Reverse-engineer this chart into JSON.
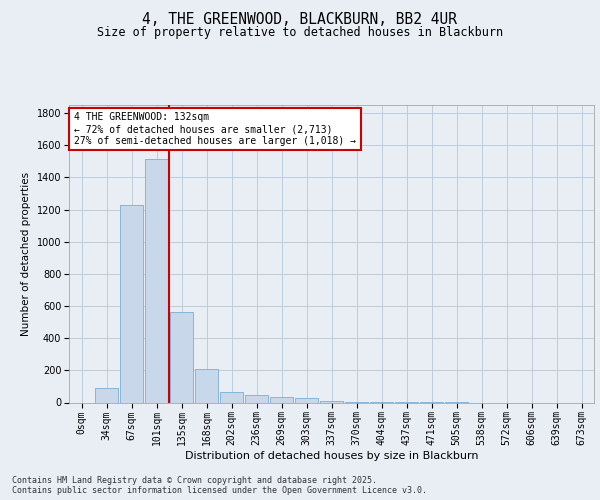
{
  "title1": "4, THE GREENWOOD, BLACKBURN, BB2 4UR",
  "title2": "Size of property relative to detached houses in Blackburn",
  "xlabel": "Distribution of detached houses by size in Blackburn",
  "ylabel": "Number of detached properties",
  "bar_labels": [
    "0sqm",
    "34sqm",
    "67sqm",
    "101sqm",
    "135sqm",
    "168sqm",
    "202sqm",
    "236sqm",
    "269sqm",
    "303sqm",
    "337sqm",
    "370sqm",
    "404sqm",
    "437sqm",
    "471sqm",
    "505sqm",
    "538sqm",
    "572sqm",
    "606sqm",
    "639sqm",
    "673sqm"
  ],
  "bar_values": [
    0,
    90,
    1230,
    1515,
    560,
    210,
    65,
    45,
    35,
    25,
    10,
    5,
    3,
    2,
    1,
    1,
    0,
    0,
    0,
    0,
    0
  ],
  "bar_color": "#c8d8ea",
  "bar_edgecolor": "#7aaed6",
  "vline_x": 3.5,
  "vline_color": "#cc0000",
  "annotation_text": "4 THE GREENWOOD: 132sqm\n← 72% of detached houses are smaller (2,713)\n27% of semi-detached houses are larger (1,018) →",
  "annotation_box_edgecolor": "#cc0000",
  "annotation_fontsize": 7,
  "ylim": [
    0,
    1850
  ],
  "yticks": [
    0,
    200,
    400,
    600,
    800,
    1000,
    1200,
    1400,
    1600,
    1800
  ],
  "background_color": "#e8eef4",
  "plot_background": "#e8eef4",
  "footer": "Contains HM Land Registry data © Crown copyright and database right 2025.\nContains public sector information licensed under the Open Government Licence v3.0.",
  "title_fontsize": 10.5,
  "subtitle_fontsize": 8.5,
  "xlabel_fontsize": 8,
  "ylabel_fontsize": 7.5,
  "tick_fontsize": 7,
  "footer_fontsize": 6
}
